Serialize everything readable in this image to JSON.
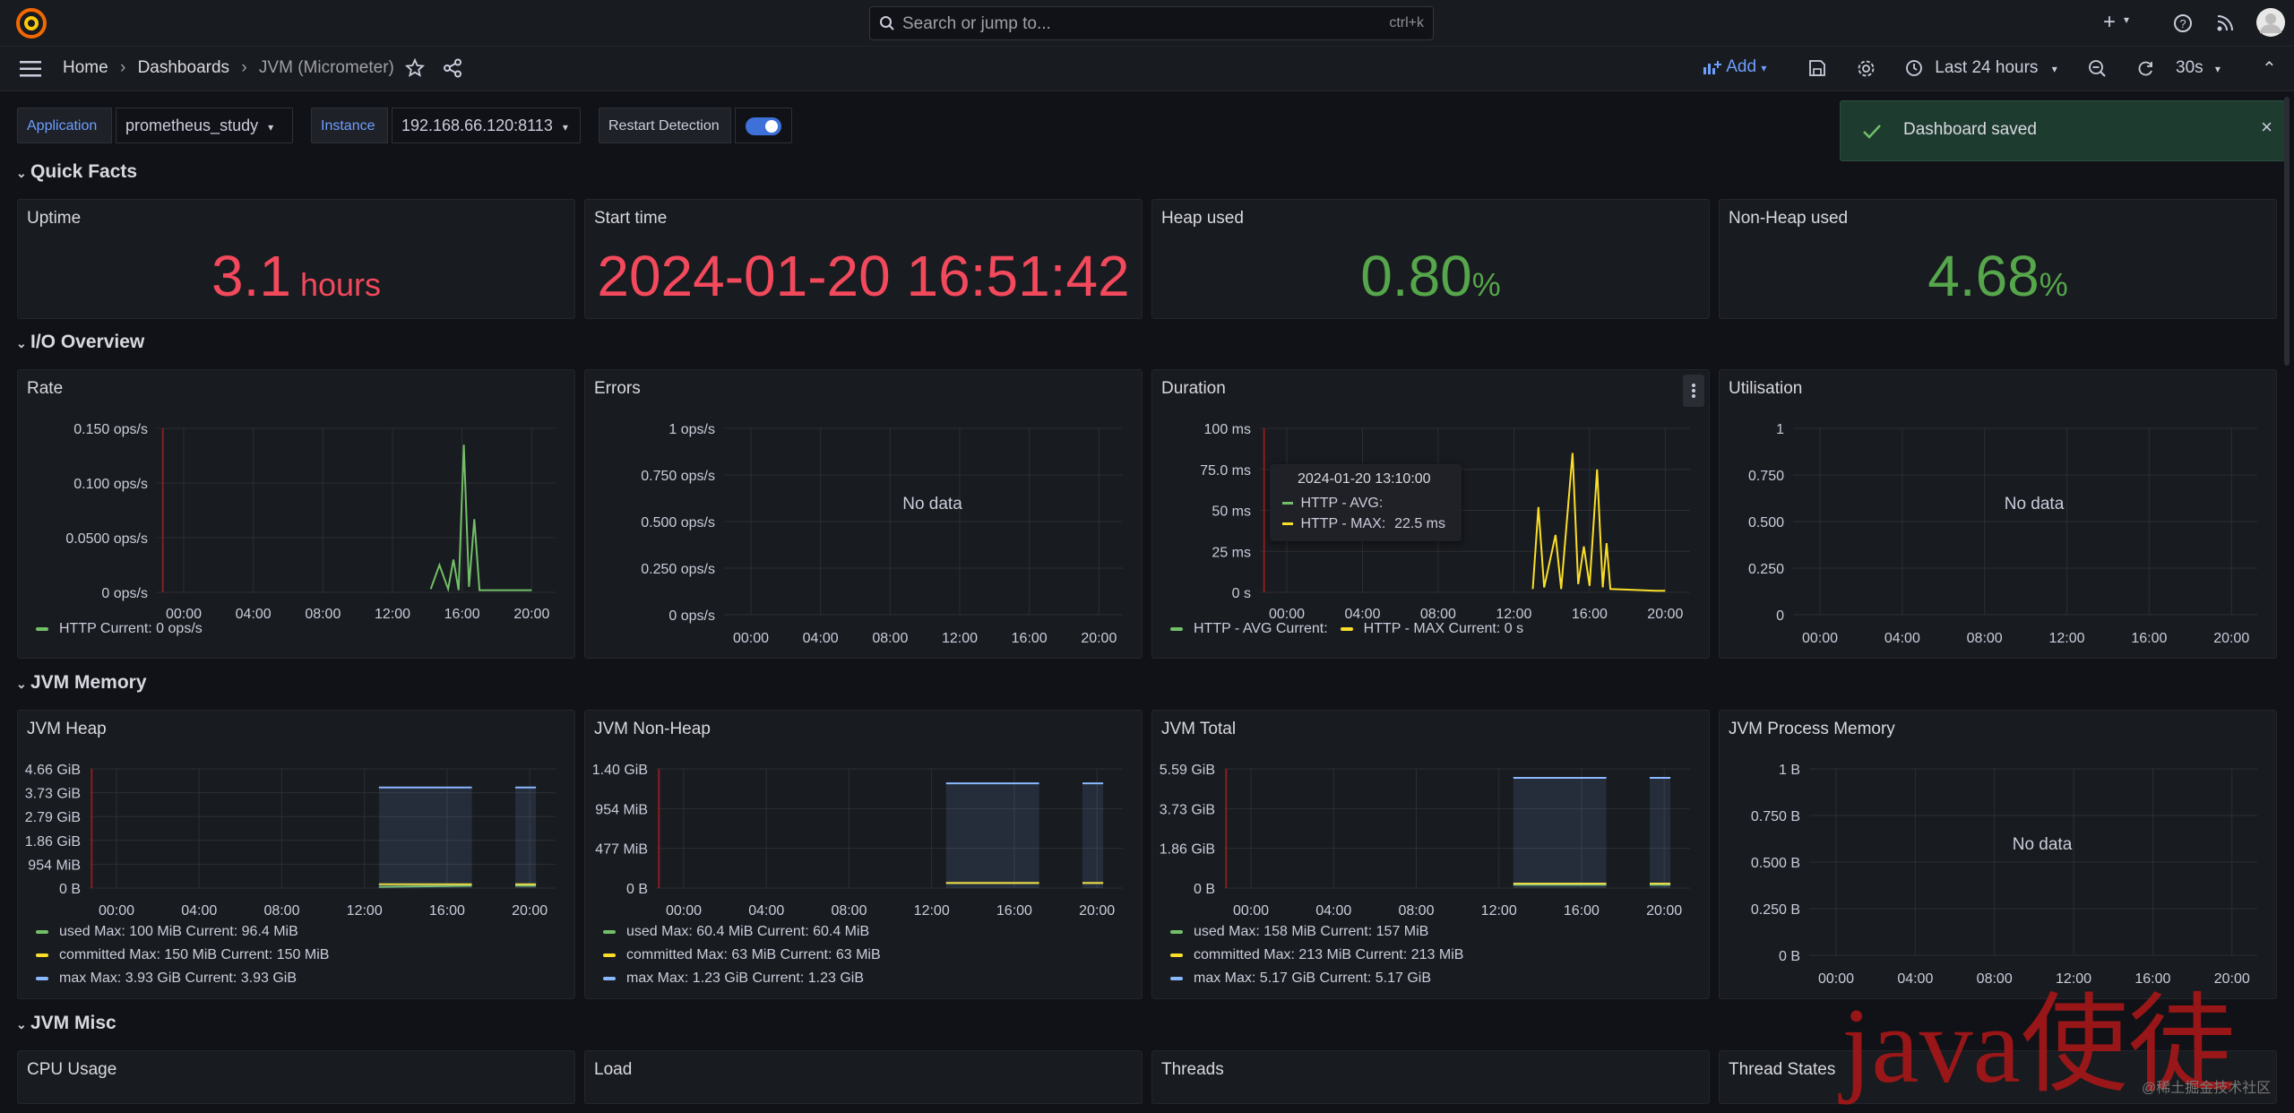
{
  "topbar": {
    "search_placeholder": "Search or jump to...",
    "search_shortcut": "ctrl+k",
    "plus_label": "+"
  },
  "navbar": {
    "breadcrumb": [
      "Home",
      "Dashboards",
      "JVM (Micrometer)"
    ],
    "add_label": "Add",
    "time_range": "Last 24 hours",
    "refresh_interval": "30s"
  },
  "variables": {
    "application_label": "Application",
    "application_value": "prometheus_study",
    "instance_label": "Instance",
    "instance_value": "192.168.66.120:8113",
    "restart_label": "Restart Detection"
  },
  "toast": {
    "message": "Dashboard saved"
  },
  "rows": {
    "quick_facts": "Quick Facts",
    "io_overview": "I/O Overview",
    "jvm_memory": "JVM Memory",
    "jvm_misc": "JVM Misc"
  },
  "stats": [
    {
      "title": "Uptime",
      "value": "3.1",
      "unit": "hours",
      "color": "#f2495c"
    },
    {
      "title": "Start time",
      "value": "2024-01-20 16:51:42",
      "unit": "",
      "color": "#f2495c"
    },
    {
      "title": "Heap used",
      "value": "0.80",
      "unit": "%",
      "color": "#56a64b"
    },
    {
      "title": "Non-Heap used",
      "value": "4.68",
      "unit": "%",
      "color": "#56a64b"
    }
  ],
  "misc_panels": [
    "CPU Usage",
    "Load",
    "Threads",
    "Thread States"
  ],
  "chart_data": [
    {
      "title": "Rate",
      "type": "line",
      "x_ticks": [
        "00:00",
        "04:00",
        "08:00",
        "12:00",
        "16:00",
        "20:00"
      ],
      "y_ticks": [
        "0 ops/s",
        "0.0500 ops/s",
        "0.100 ops/s",
        "0.150 ops/s"
      ],
      "ylim": [
        0,
        0.15
      ],
      "series": [
        {
          "name": "HTTP",
          "color": "#73bf69",
          "points": [
            [
              14.2,
              0.003
            ],
            [
              14.7,
              0.025
            ],
            [
              15.2,
              0.003
            ],
            [
              15.5,
              0.03
            ],
            [
              15.8,
              0.002
            ],
            [
              16.1,
              0.135
            ],
            [
              16.4,
              0.005
            ],
            [
              16.7,
              0.067
            ],
            [
              17.0,
              0.002
            ],
            [
              19.5,
              0.002
            ],
            [
              20.0,
              0.002
            ]
          ]
        }
      ],
      "legend": [
        "HTTP  Current: 0 ops/s"
      ]
    },
    {
      "title": "Errors",
      "type": "line",
      "no_data": "No data",
      "x_ticks": [
        "00:00",
        "04:00",
        "08:00",
        "12:00",
        "16:00",
        "20:00"
      ],
      "y_ticks": [
        "0 ops/s",
        "0.250 ops/s",
        "0.500 ops/s",
        "0.750 ops/s",
        "1 ops/s"
      ],
      "ylim": [
        0,
        1
      ],
      "series": []
    },
    {
      "title": "Duration",
      "type": "line",
      "x_ticks": [
        "00:00",
        "04:00",
        "08:00",
        "12:00",
        "16:00",
        "20:00"
      ],
      "y_ticks": [
        "0 s",
        "25 ms",
        "50 ms",
        "75.0 ms",
        "100 ms"
      ],
      "ylim": [
        0,
        100
      ],
      "series": [
        {
          "name": "HTTP - AVG",
          "color": "#73bf69",
          "points": []
        },
        {
          "name": "HTTP - MAX",
          "color": "#fade2a",
          "points": [
            [
              13.0,
              2
            ],
            [
              13.3,
              52
            ],
            [
              13.6,
              3
            ],
            [
              14.2,
              35
            ],
            [
              14.5,
              2
            ],
            [
              15.1,
              85
            ],
            [
              15.4,
              5
            ],
            [
              15.7,
              28
            ],
            [
              16.0,
              4
            ],
            [
              16.4,
              75
            ],
            [
              16.7,
              3
            ],
            [
              16.9,
              30
            ],
            [
              17.1,
              2
            ],
            [
              19.5,
              1
            ],
            [
              20.0,
              1
            ]
          ]
        }
      ],
      "legend": [
        "HTTP - AVG  Current:",
        "HTTP - MAX  Current: 0 s"
      ],
      "tooltip": {
        "time": "2024-01-20 13:10:00",
        "rows": [
          "HTTP - AVG:",
          "HTTP - MAX:"
        ],
        "max_value": "22.5 ms"
      }
    },
    {
      "title": "Utilisation",
      "type": "line",
      "no_data": "No data",
      "x_ticks": [
        "00:00",
        "04:00",
        "08:00",
        "12:00",
        "16:00",
        "20:00"
      ],
      "y_ticks": [
        "0",
        "0.250",
        "0.500",
        "0.750",
        "1"
      ],
      "ylim": [
        0,
        1
      ],
      "series": []
    },
    {
      "title": "JVM Heap",
      "type": "area",
      "x_ticks": [
        "00:00",
        "04:00",
        "08:00",
        "12:00",
        "16:00",
        "20:00"
      ],
      "y_ticks": [
        "0 B",
        "954 MiB",
        "1.86 GiB",
        "2.79 GiB",
        "3.73 GiB",
        "4.66 GiB"
      ],
      "ylim": [
        0,
        4.66
      ],
      "series": [
        {
          "name": "used",
          "color": "#73bf69",
          "segments": [
            [
              [
                12.7,
                0.05
              ],
              [
                17.2,
                0.09
              ]
            ],
            [
              [
                19.3,
                0.09
              ],
              [
                20.3,
                0.09
              ]
            ]
          ]
        },
        {
          "name": "committed",
          "color": "#fade2a",
          "segments": [
            [
              [
                12.7,
                0.15
              ],
              [
                17.2,
                0.15
              ]
            ],
            [
              [
                19.3,
                0.15
              ],
              [
                20.3,
                0.15
              ]
            ]
          ]
        },
        {
          "name": "max",
          "color": "#8ab8ff",
          "segments": [
            [
              [
                12.7,
                3.93
              ],
              [
                17.2,
                3.93
              ]
            ],
            [
              [
                19.3,
                3.93
              ],
              [
                20.3,
                3.93
              ]
            ]
          ]
        }
      ],
      "legend": [
        "used  Max: 100 MiB  Current: 96.4 MiB",
        "committed  Max: 150 MiB  Current: 150 MiB",
        "max  Max: 3.93 GiB  Current: 3.93 GiB"
      ]
    },
    {
      "title": "JVM Non-Heap",
      "type": "area",
      "x_ticks": [
        "00:00",
        "04:00",
        "08:00",
        "12:00",
        "16:00",
        "20:00"
      ],
      "y_ticks": [
        "0 B",
        "477 MiB",
        "954 MiB",
        "1.40 GiB"
      ],
      "ylim": [
        0,
        1.4
      ],
      "series": [
        {
          "name": "used",
          "color": "#73bf69",
          "segments": [
            [
              [
                12.7,
                0.058
              ],
              [
                17.2,
                0.058
              ]
            ],
            [
              [
                19.3,
                0.058
              ],
              [
                20.3,
                0.058
              ]
            ]
          ]
        },
        {
          "name": "committed",
          "color": "#fade2a",
          "segments": [
            [
              [
                12.7,
                0.061
              ],
              [
                17.2,
                0.061
              ]
            ],
            [
              [
                19.3,
                0.061
              ],
              [
                20.3,
                0.061
              ]
            ]
          ]
        },
        {
          "name": "max",
          "color": "#8ab8ff",
          "segments": [
            [
              [
                12.7,
                1.23
              ],
              [
                17.2,
                1.23
              ]
            ],
            [
              [
                19.3,
                1.23
              ],
              [
                20.3,
                1.23
              ]
            ]
          ]
        }
      ],
      "legend": [
        "used  Max: 60.4 MiB  Current: 60.4 MiB",
        "committed  Max: 63 MiB  Current: 63 MiB",
        "max  Max: 1.23 GiB  Current: 1.23 GiB"
      ]
    },
    {
      "title": "JVM Total",
      "type": "area",
      "x_ticks": [
        "00:00",
        "04:00",
        "08:00",
        "12:00",
        "16:00",
        "20:00"
      ],
      "y_ticks": [
        "0 B",
        "1.86 GiB",
        "3.73 GiB",
        "5.59 GiB"
      ],
      "ylim": [
        0,
        5.59
      ],
      "series": [
        {
          "name": "used",
          "color": "#73bf69",
          "segments": [
            [
              [
                12.7,
                0.15
              ],
              [
                17.2,
                0.15
              ]
            ],
            [
              [
                19.3,
                0.15
              ],
              [
                20.3,
                0.15
              ]
            ]
          ]
        },
        {
          "name": "committed",
          "color": "#fade2a",
          "segments": [
            [
              [
                12.7,
                0.21
              ],
              [
                17.2,
                0.21
              ]
            ],
            [
              [
                19.3,
                0.21
              ],
              [
                20.3,
                0.21
              ]
            ]
          ]
        },
        {
          "name": "max",
          "color": "#8ab8ff",
          "segments": [
            [
              [
                12.7,
                5.17
              ],
              [
                17.2,
                5.17
              ]
            ],
            [
              [
                19.3,
                5.17
              ],
              [
                20.3,
                5.17
              ]
            ]
          ]
        }
      ],
      "legend": [
        "used  Max: 158 MiB  Current: 157 MiB",
        "committed  Max: 213 MiB  Current: 213 MiB",
        "max  Max: 5.17 GiB  Current: 5.17 GiB"
      ]
    },
    {
      "title": "JVM Process Memory",
      "type": "line",
      "no_data": "No data",
      "x_ticks": [
        "00:00",
        "04:00",
        "08:00",
        "12:00",
        "16:00",
        "20:00"
      ],
      "y_ticks": [
        "0 B",
        "0.250 B",
        "0.500 B",
        "0.750 B",
        "1 B"
      ],
      "ylim": [
        0,
        1
      ],
      "series": []
    }
  ],
  "watermark": "java使徒",
  "watermark_small": "@稀土掘金技术社区",
  "colors": {
    "now_marker": "#8b1e1e",
    "grid": "#2c2e33",
    "accent": "#6e9fff"
  }
}
